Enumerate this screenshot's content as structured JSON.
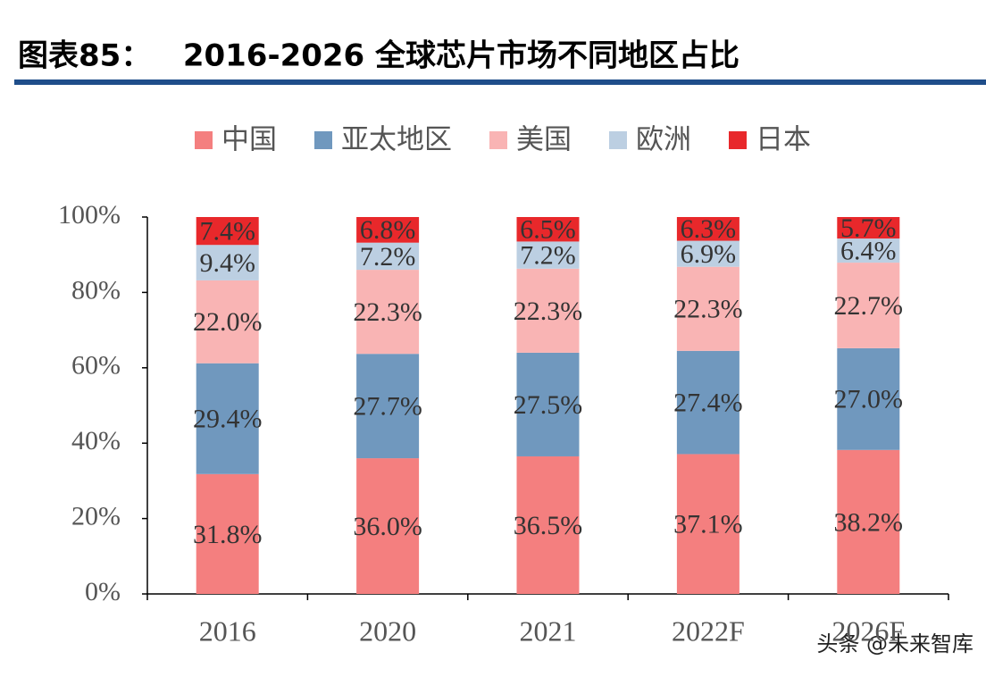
{
  "chart_data": {
    "type": "stacked_bar",
    "title": "图表85：   2016-2026 全球芯片市场不同地区占比",
    "watermark": "头条 @未来智库",
    "categories": [
      "2016",
      "2020",
      "2021",
      "2022F",
      "2026F"
    ],
    "series": [
      {
        "name": "中国",
        "color": "#f47f7f",
        "values": [
          31.8,
          36.0,
          36.5,
          37.1,
          38.2
        ],
        "value_labels": [
          "31.8%",
          "36.0%",
          "36.5%",
          "37.1%",
          "38.2%"
        ]
      },
      {
        "name": "亚太地区",
        "color": "#7098be",
        "values": [
          29.4,
          27.7,
          27.5,
          27.4,
          27.0
        ],
        "value_labels": [
          "29.4%",
          "27.7%",
          "27.5%",
          "27.4%",
          "27.0%"
        ]
      },
      {
        "name": "美国",
        "color": "#f9b4b4",
        "values": [
          22.0,
          22.3,
          22.3,
          22.3,
          22.7
        ],
        "value_labels": [
          "22.0%",
          "22.3%",
          "22.3%",
          "22.3%",
          "22.7%"
        ]
      },
      {
        "name": "欧洲",
        "color": "#bccfe2",
        "values": [
          9.4,
          7.2,
          7.2,
          6.9,
          6.4
        ],
        "value_labels": [
          "9.4%",
          "7.2%",
          "7.2%",
          "6.9%",
          "6.4%"
        ]
      },
      {
        "name": "日本",
        "color": "#e8282b",
        "values": [
          7.4,
          6.8,
          6.5,
          6.3,
          5.7
        ],
        "value_labels": [
          "7.4%",
          "6.8%",
          "6.5%",
          "6.3%",
          "5.7%"
        ]
      }
    ],
    "ylim": [
      0,
      100
    ],
    "yticks": [
      {
        "value": 0,
        "label": "0%"
      },
      {
        "value": 20,
        "label": "20%"
      },
      {
        "value": 40,
        "label": "40%"
      },
      {
        "value": 60,
        "label": "60%"
      },
      {
        "value": 80,
        "label": "80%"
      },
      {
        "value": 100,
        "label": "100%"
      }
    ],
    "legend": "top"
  }
}
